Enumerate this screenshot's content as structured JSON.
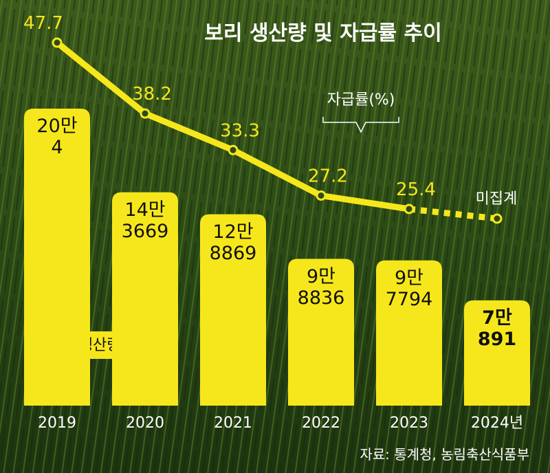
{
  "chart_data": {
    "type": "combo",
    "title": "보리 생산량 및 자급률 추이",
    "source": "자료: 통계청, 농림축산식품부",
    "categories": [
      "2019",
      "2020",
      "2021",
      "2022",
      "2023",
      "2024년"
    ],
    "series": [
      {
        "name": "생산량(t)",
        "type": "bar",
        "color": "#f6e71c",
        "values": [
          200004,
          143669,
          128869,
          98836,
          97794,
          70891
        ],
        "value_labels": [
          "20만\n4",
          "14만\n3669",
          "12만\n8869",
          "9만\n8836",
          "9만\n7794",
          "7만\n891"
        ]
      },
      {
        "name": "자급률(%)",
        "type": "line",
        "color": "#f6e71c",
        "values": [
          47.7,
          38.2,
          33.3,
          27.2,
          25.4,
          null
        ]
      }
    ],
    "annotations": [
      "미집계"
    ]
  }
}
